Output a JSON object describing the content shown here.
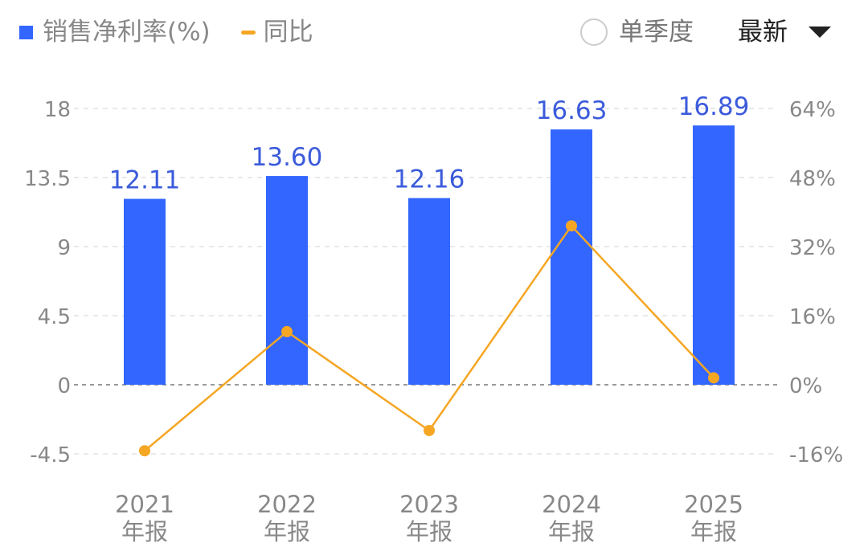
{
  "legend": {
    "bar_label": "销售净利率(%)",
    "line_label": "同比"
  },
  "controls": {
    "quarter_label": "单季度",
    "quarter_checked": false,
    "period_label": "最新"
  },
  "colors": {
    "bar": "#3366ff",
    "line": "#f5a623",
    "bar_label": "#3b5bdb",
    "axis_text": "#888888"
  },
  "chart_data": {
    "type": "bar+line",
    "categories": [
      [
        "2021",
        "年报"
      ],
      [
        "2022",
        "年报"
      ],
      [
        "2023",
        "年报"
      ],
      [
        "2024",
        "年报"
      ],
      [
        "2025",
        "年报"
      ]
    ],
    "series": [
      {
        "name": "销售净利率(%)",
        "type": "bar",
        "axis": "left",
        "values": [
          12.11,
          13.6,
          12.16,
          16.63,
          16.89
        ],
        "labels": [
          "12.11",
          "13.60",
          "12.16",
          "16.63",
          "16.89"
        ]
      },
      {
        "name": "同比",
        "type": "line",
        "axis": "right",
        "values": [
          -15.3,
          12.3,
          -10.6,
          36.8,
          1.6
        ]
      }
    ],
    "left_axis": {
      "ticks": [
        18,
        13.5,
        9,
        4.5,
        0,
        -4.5
      ],
      "tick_labels": [
        "18",
        "13.5",
        "9",
        "4.5",
        "0",
        "-4.5"
      ],
      "range": [
        -4.5,
        18
      ]
    },
    "right_axis": {
      "ticks": [
        64,
        48,
        32,
        16,
        0,
        -16
      ],
      "tick_labels": [
        "64%",
        "48%",
        "32%",
        "16%",
        "0%",
        "-16%"
      ],
      "range": [
        -16,
        64
      ]
    },
    "grid": true
  }
}
